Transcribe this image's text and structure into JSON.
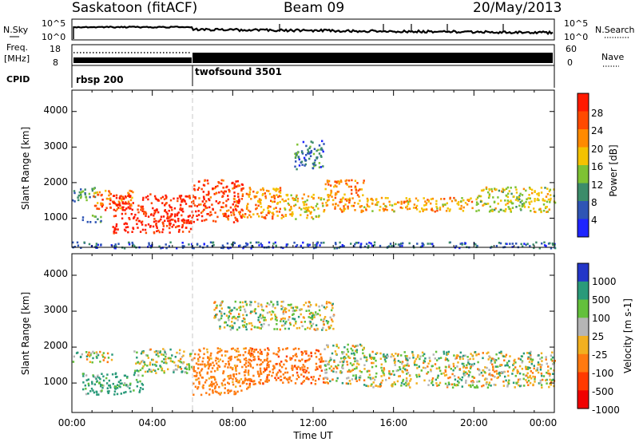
{
  "header": {
    "station": "Saskatoon (fitACF)",
    "beam": "Beam 09",
    "date": "20/May/2013"
  },
  "noise_panel": {
    "left_label": "N.Sky",
    "right_label": "N.Search",
    "left_ticks": [
      "10^5",
      "10^0"
    ],
    "right_ticks": [
      "10^5",
      "10^0"
    ]
  },
  "freq_panel": {
    "left_label_line1": "Freq.",
    "left_label_line2": "[MHz]",
    "right_label": "Nave",
    "left_ticks": [
      "18",
      "8"
    ],
    "right_ticks": [
      "60",
      "0"
    ]
  },
  "cpid_panel": {
    "label": "CPID",
    "programs": [
      {
        "name": "rbsp 200",
        "start_hour": 0
      },
      {
        "name": "twofsound 3501",
        "start_hour": 6
      }
    ]
  },
  "x_axis": {
    "title": "Time UT",
    "range_hours": [
      0,
      24
    ],
    "ticks": [
      "00:00",
      "04:00",
      "08:00",
      "12:00",
      "16:00",
      "20:00",
      "00:00"
    ]
  },
  "power_panel": {
    "ylabel": "Slant Range [km]",
    "yticks": [
      "1000",
      "2000",
      "3000",
      "4000"
    ],
    "colorbar": {
      "title": "Power [dB]",
      "tick_labels": [
        "4",
        "8",
        "12",
        "16",
        "20",
        "24",
        "28"
      ],
      "colors": [
        "#1f25ff",
        "#2f55b5",
        "#3c8c6a",
        "#7ec233",
        "#f4c200",
        "#ff8a00",
        "#ff4a00",
        "#ff1a00"
      ]
    }
  },
  "velocity_panel": {
    "ylabel": "Slant Range [km]",
    "yticks": [
      "1000",
      "2000",
      "3000",
      "4000"
    ],
    "colorbar": {
      "title": "Velocity [m s-1]",
      "tick_labels": [
        "1000",
        "500",
        "100",
        "25",
        "-25",
        "-100",
        "-500",
        "-1000"
      ],
      "colors": [
        "#2336c8",
        "#2a9a7a",
        "#63c03c",
        "#b5b5b5",
        "#f2b020",
        "#ff7a10",
        "#ff3a00",
        "#f00000"
      ]
    }
  },
  "chart_data": [
    {
      "type": "heatmap",
      "title": "Power [dB]",
      "xlabel": "Time UT",
      "ylabel": "Slant Range [km]",
      "xlim": [
        0,
        24
      ],
      "ylim": [
        180,
        4600
      ],
      "units_x": "hours UT",
      "units_y": "km",
      "echo_regions": [
        {
          "t_start": 0.0,
          "t_end": 1.2,
          "range_low": 1500,
          "range_high": 1900,
          "power_db": 10
        },
        {
          "t_start": 0.5,
          "t_end": 1.5,
          "range_low": 900,
          "range_high": 1100,
          "power_db": 9
        },
        {
          "t_start": 1.0,
          "t_end": 3.0,
          "range_low": 1250,
          "range_high": 1800,
          "power_db": 24
        },
        {
          "t_start": 2.0,
          "t_end": 6.0,
          "range_low": 600,
          "range_high": 1700,
          "power_db": 30
        },
        {
          "t_start": 6.0,
          "t_end": 8.5,
          "range_low": 900,
          "range_high": 2100,
          "power_db": 27
        },
        {
          "t_start": 8.5,
          "t_end": 10.5,
          "range_low": 1000,
          "range_high": 1900,
          "power_db": 22
        },
        {
          "t_start": 10.5,
          "t_end": 12.5,
          "range_low": 1000,
          "range_high": 1700,
          "power_db": 18
        },
        {
          "t_start": 11.0,
          "t_end": 12.5,
          "range_low": 2400,
          "range_high": 3200,
          "power_db": 8
        },
        {
          "t_start": 12.5,
          "t_end": 14.5,
          "range_low": 1200,
          "range_high": 2100,
          "power_db": 22
        },
        {
          "t_start": 14.5,
          "t_end": 20.0,
          "range_low": 1200,
          "range_high": 1600,
          "power_db": 20
        },
        {
          "t_start": 20.0,
          "t_end": 24.0,
          "range_low": 1200,
          "range_high": 1900,
          "power_db": 16
        },
        {
          "t_start": 0.0,
          "t_end": 24.0,
          "range_low": 180,
          "range_high": 350,
          "power_db": 6
        }
      ]
    },
    {
      "type": "heatmap",
      "title": "Velocity [m s-1]",
      "xlabel": "Time UT",
      "ylabel": "Slant Range [km]",
      "xlim": [
        0,
        24
      ],
      "ylim": [
        180,
        4600
      ],
      "units_x": "hours UT",
      "units_y": "km",
      "echo_regions": [
        {
          "t_start": 0.0,
          "t_end": 2.0,
          "range_low": 1600,
          "range_high": 1900,
          "velocity": 0
        },
        {
          "t_start": 0.5,
          "t_end": 3.5,
          "range_low": 700,
          "range_high": 1300,
          "velocity": 150
        },
        {
          "t_start": 3.0,
          "t_end": 6.0,
          "range_low": 1300,
          "range_high": 2000,
          "velocity": 20
        },
        {
          "t_start": 6.0,
          "t_end": 9.0,
          "range_low": 700,
          "range_high": 2000,
          "velocity": -200
        },
        {
          "t_start": 8.5,
          "t_end": 12.5,
          "range_low": 1000,
          "range_high": 2000,
          "velocity": -400
        },
        {
          "t_start": 12.5,
          "t_end": 14.5,
          "range_low": 1000,
          "range_high": 2100,
          "velocity": 0
        },
        {
          "t_start": 14.5,
          "t_end": 24.0,
          "range_low": 900,
          "range_high": 1900,
          "velocity": 0
        },
        {
          "t_start": 7.0,
          "t_end": 13.0,
          "range_low": 2500,
          "range_high": 3300,
          "velocity": 0
        }
      ]
    }
  ]
}
